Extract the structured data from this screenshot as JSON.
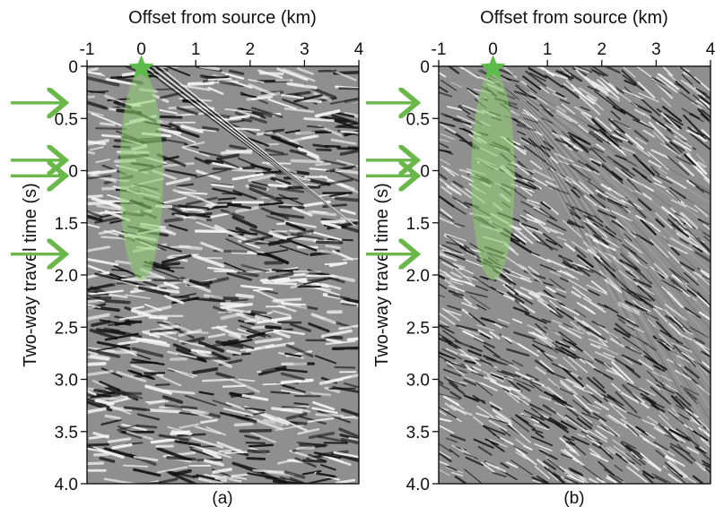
{
  "panels": [
    {
      "id": "a",
      "caption": "(a)",
      "x_label": "Offset from source (km)",
      "y_label": "Two-way travel time (s)",
      "x_ticks": [
        "-1",
        "0",
        "1",
        "2",
        "3",
        "4"
      ],
      "y_ticks": [
        "0",
        "0.5",
        "1.0",
        "1.5",
        "2.0",
        "2.5",
        "3.0",
        "3.5",
        "4.0"
      ],
      "x_range": [
        -1,
        4
      ],
      "y_range": [
        0,
        4
      ],
      "source_marker": {
        "shape": "star",
        "offset_km": 0,
        "time_s": 0
      },
      "highlight": {
        "shape": "ellipse",
        "center_offset_km": 0,
        "center_time_s": 1.05,
        "half_width_km": 0.4,
        "half_height_s": 1.0
      },
      "arrow_times_s": [
        0.35,
        0.9,
        1.05,
        1.8
      ],
      "noise_character": "strong reflections"
    },
    {
      "id": "b",
      "caption": "(b)",
      "x_label": "Offset from source (km)",
      "y_label": "Two-way travel time (s)",
      "x_ticks": [
        "-1",
        "0",
        "1",
        "2",
        "3",
        "4"
      ],
      "y_ticks": [
        "0",
        "0.5",
        "1.0",
        "1.5",
        "2.0",
        "2.5",
        "3.0",
        "3.5",
        "4.0"
      ],
      "x_range": [
        -1,
        4
      ],
      "y_range": [
        0,
        4
      ],
      "source_marker": {
        "shape": "star",
        "offset_km": 0,
        "time_s": 0
      },
      "highlight": {
        "shape": "ellipse",
        "center_offset_km": 0,
        "center_time_s": 1.05,
        "half_width_km": 0.4,
        "half_height_s": 1.0
      },
      "arrow_times_s": [
        0.35,
        0.9,
        1.05,
        1.8
      ],
      "noise_character": "fine ground roll"
    }
  ],
  "colors": {
    "arrow": "#6ab74a",
    "star": "#5dbb4a",
    "highlight": "#8fd16e",
    "seismic_base": "#8f8f8f"
  }
}
